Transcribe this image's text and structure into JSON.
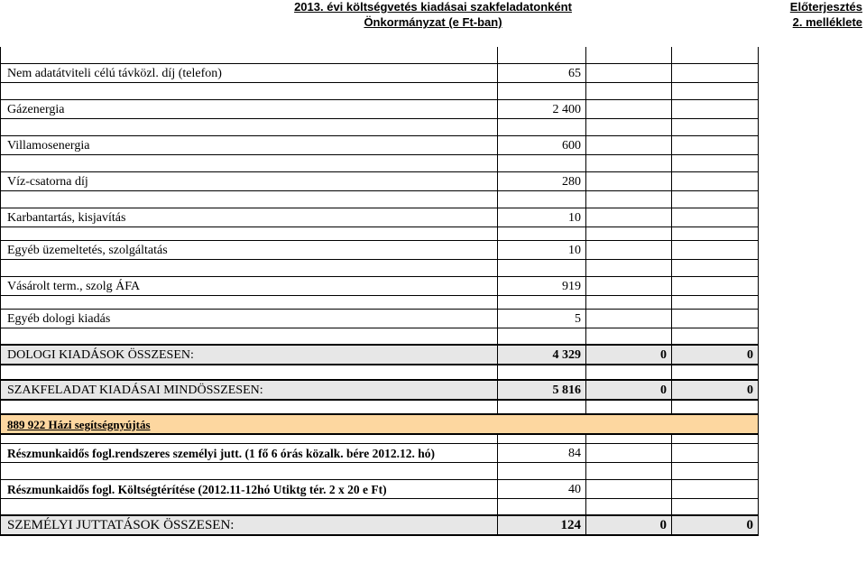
{
  "header": {
    "title_line1": "2013. évi költségvetés kiadásai szakfeladatonként",
    "title_line2": "Önkormányzat  (e Ft-ban)",
    "right_line1": "Előterjesztés",
    "right_line2": "2. melléklete"
  },
  "rows": [
    {
      "label": "Nem adatátviteli célú távközl. díj (telefon)",
      "v1": "65",
      "v2": "",
      "v3": ""
    },
    {
      "label": "Gázenergia",
      "v1": "2 400",
      "v2": "",
      "v3": ""
    },
    {
      "label": "Villamosenergia",
      "v1": "600",
      "v2": "",
      "v3": ""
    },
    {
      "label": "Víz-csatorna díj",
      "v1": "280",
      "v2": "",
      "v3": ""
    },
    {
      "label": "Karbantartás, kisjavítás",
      "v1": "10",
      "v2": "",
      "v3": ""
    },
    {
      "label": "Egyéb üzemeltetés, szolgáltatás",
      "v1": "10",
      "v2": "",
      "v3": ""
    },
    {
      "label": "Vásárolt term., szolg ÁFA",
      "v1": "919",
      "v2": "",
      "v3": ""
    },
    {
      "label": "Egyéb dologi kiadás",
      "v1": "5",
      "v2": "",
      "v3": ""
    },
    {
      "label": "DOLOGI KIADÁSOK ÖSSZESEN:",
      "v1": "4 329",
      "v2": "0",
      "v3": "0"
    },
    {
      "label": "SZAKFELADAT KIADÁSAI MINDÖSSZESEN:",
      "v1": "5 816",
      "v2": "0",
      "v3": "0"
    },
    {
      "label": "889 922 Házi segítségnyújtás",
      "v1": "",
      "v2": "",
      "v3": ""
    },
    {
      "label": "Részmunkaidős fogl.rendszeres személyi jutt. (1 fő 6 órás közalk. bére 2012.12. hó)",
      "v1": "84",
      "v2": "",
      "v3": ""
    },
    {
      "label": "Részmunkaidős fogl. Költségtérítése (2012.11-12hó Utiktg tér. 2 x 20 e Ft)",
      "v1": "40",
      "v2": "",
      "v3": ""
    },
    {
      "label": "SZEMÉLYI JUTTATÁSOK ÖSSZESEN:",
      "v1": "124",
      "v2": "0",
      "v3": "0"
    }
  ]
}
